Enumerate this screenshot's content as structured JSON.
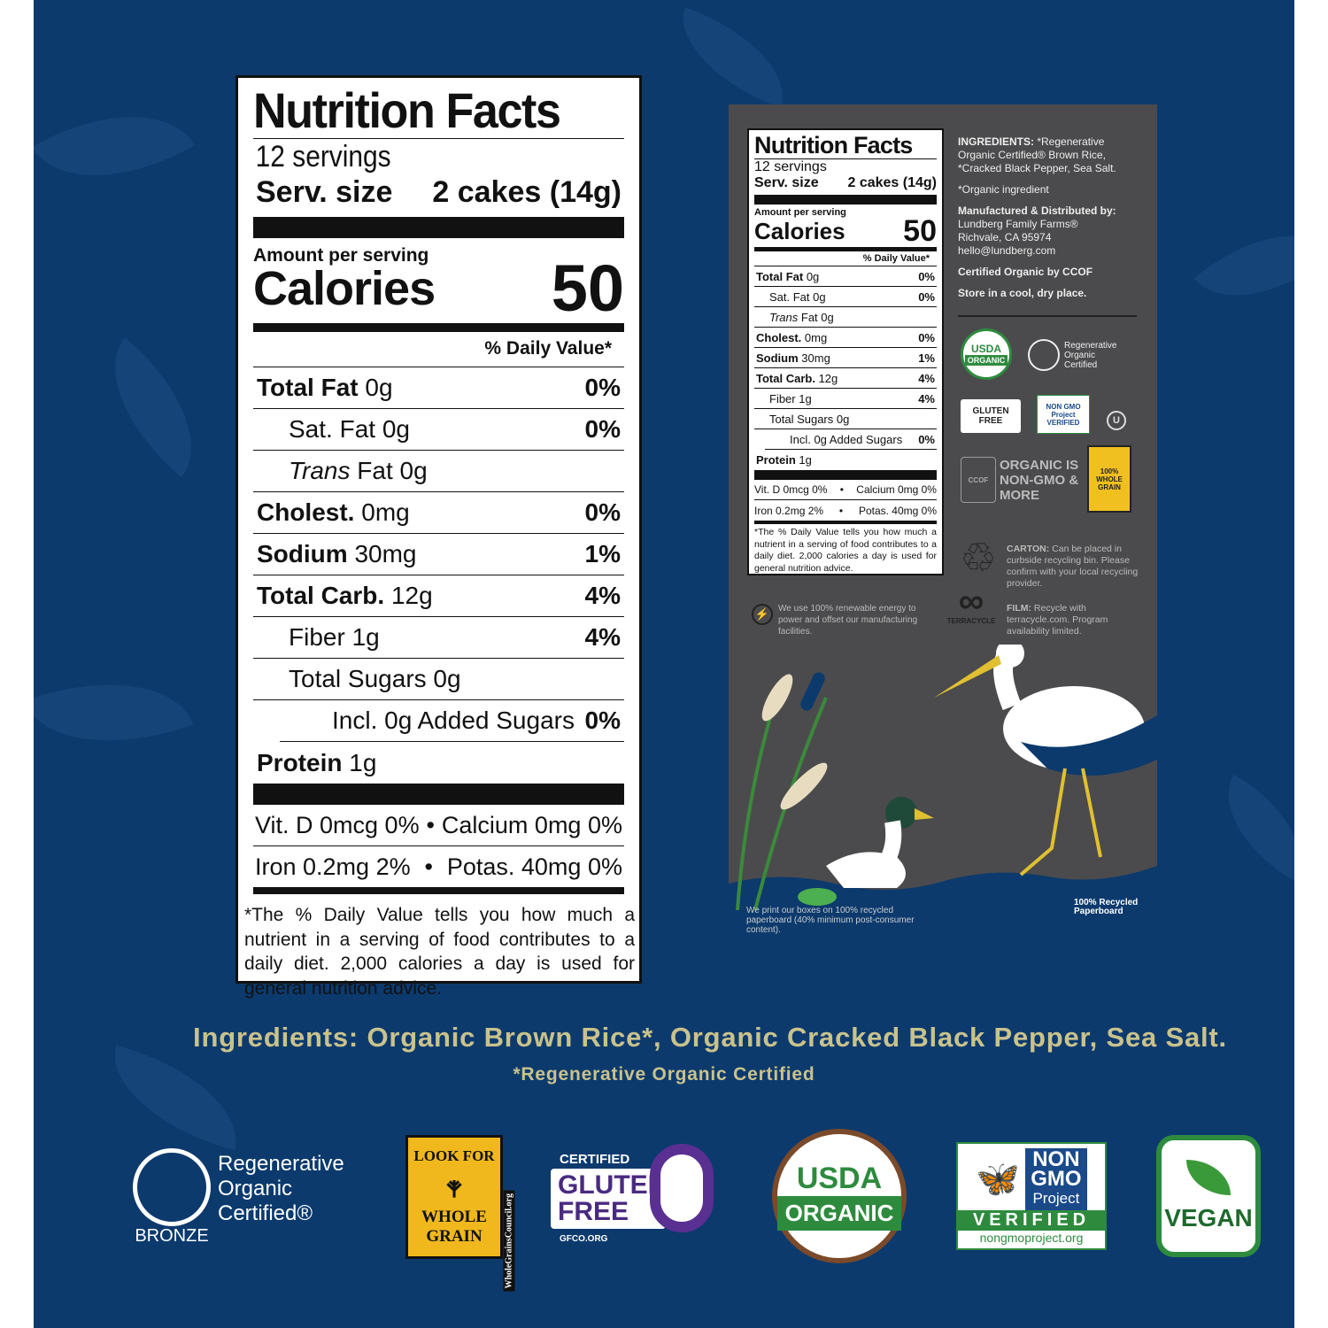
{
  "label": {
    "title": "Nutrition Facts",
    "servings": "12 servings",
    "serv_size_label": "Serv. size",
    "serv_size_value": "2 cakes (14g)",
    "amount_per_serving": "Amount per serving",
    "calories_label": "Calories",
    "calories_value": "50",
    "daily_value_header": "% Daily Value*",
    "rows": [
      {
        "name": "Total Fat",
        "amount": "0g",
        "dv": "0%",
        "bold": true,
        "indent": 0
      },
      {
        "name": "Sat. Fat",
        "amount": "0g",
        "dv": "0%",
        "bold": false,
        "indent": 1
      },
      {
        "name": "Trans",
        "name_suffix": " Fat",
        "amount": "0g",
        "dv": "",
        "bold": false,
        "indent": 1,
        "italic": true
      },
      {
        "name": "Cholest.",
        "amount": "0mg",
        "dv": "0%",
        "bold": true,
        "indent": 0
      },
      {
        "name": "Sodium",
        "amount": "30mg",
        "dv": "1%",
        "bold": true,
        "indent": 0
      },
      {
        "name": "Total Carb.",
        "amount": "12g",
        "dv": "4%",
        "bold": true,
        "indent": 0
      },
      {
        "name": "Fiber",
        "amount": "1g",
        "dv": "4%",
        "bold": false,
        "indent": 1
      },
      {
        "name": "Total Sugars",
        "amount": "0g",
        "dv": "",
        "bold": false,
        "indent": 1
      },
      {
        "name": "Incl. 0g Added Sugars",
        "amount": "",
        "dv": "0%",
        "bold": false,
        "indent": 2
      },
      {
        "name": "Protein",
        "amount": "1g",
        "dv": "",
        "bold": true,
        "indent": 0
      }
    ],
    "vitamins": [
      {
        "left": "Vit. D 0mcg 0%",
        "right": "Calcium 0mg 0%"
      },
      {
        "left": "Iron 0.2mg 2%",
        "right": "Potas. 40mg 0%"
      }
    ],
    "bullet": "•",
    "footnote": "*The % Daily Value tells you how much a nutrient in a serving of food contributes to a daily diet. 2,000 calories a day is used for general nutrition advice."
  },
  "box": {
    "ingredients_heading": "INGREDIENTS:",
    "ingredients_text": " *Regenerative Organic Certified® Brown Rice, *Cracked Black Pepper, Sea Salt.",
    "organic_note": "*Organic ingredient",
    "manufacturer_heading": "Manufactured & Distributed by:",
    "manufacturer_lines": [
      "Lundberg Family Farms®",
      "Richvale, CA 95974",
      "hello@lundberg.com"
    ],
    "certified": "Certified Organic by CCOF",
    "storage": "Store in a cool, dry place.",
    "badges": {
      "usda": [
        "USDA",
        "ORGANIC"
      ],
      "roc": "Regenerative Organic Certified",
      "roc_level": "BRONZE",
      "gluten_free": "GLUTEN FREE",
      "non_gmo": "NON GMO Project VERIFIED",
      "organic_claim": "ORGANIC IS NON-GMO & MORE",
      "whole_grain": "100% WHOLE GRAIN"
    },
    "carton_heading": "CARTON:",
    "carton_text": " Can be placed in curbside recycling bin. Please confirm with your local recycling provider.",
    "energy_text": "We use 100% renewable energy to power and offset our manufacturing facilities.",
    "terracycle": "TERRACYCLE",
    "film_heading": "FILM:",
    "film_text": " Recycle with terracycle.com. Program availability limited.",
    "paperboard_text": "We print our boxes on 100% recycled paperboard (40% minimum post-consumer content).",
    "paperboard_badge": "100% Recycled Paperboard"
  },
  "ingredients_line": "Ingredients: Organic Brown Rice*, Organic Cracked Black Pepper, Sea Salt.",
  "ingredients_note": "*Regenerative Organic Certified",
  "logos": {
    "roc": [
      "Regenerative",
      "Organic",
      "Certified®"
    ],
    "roc_level": "BRONZE",
    "whole_grain": [
      "LOOK FOR",
      "WHOLE",
      "GRAIN"
    ],
    "whole_grain_url": "WholeGrainsCouncil.org",
    "gluten_certified": "CERTIFIED",
    "gluten": [
      "GLUTEN",
      "FREE"
    ],
    "gfco": "GFCO.ORG",
    "usda": [
      "USDA",
      "ORGANIC"
    ],
    "nongmo": [
      "NON",
      "GMO",
      "Project",
      "VERIFIED",
      "nongmoproject.org"
    ],
    "vegan": "VEGAN"
  },
  "colors": {
    "background": "#0c3a6d",
    "ingredients_text": "#c9c28c",
    "box": "#4b4b4d",
    "usda_green": "#2e8b3e"
  }
}
